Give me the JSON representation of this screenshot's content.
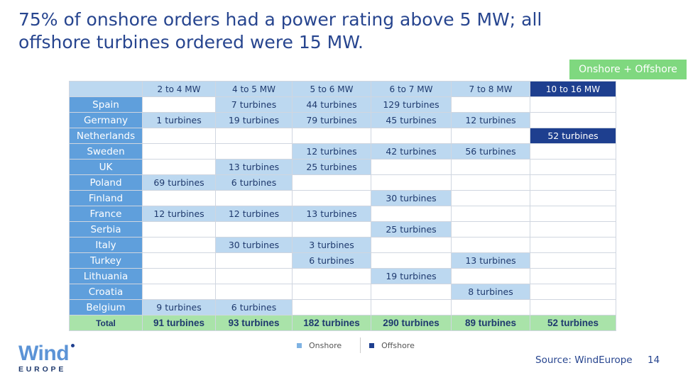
{
  "title": {
    "line1": "75% of onshore orders had a power rating above 5 MW; all",
    "line2": "offshore turbines ordered were 15 MW."
  },
  "tag": "Onshore + Offshore",
  "table": {
    "columns": [
      "2 to 4 MW",
      "4 to 5 MW",
      "5 to 6 MW",
      "6 to 7 MW",
      "7 to 8 MW",
      "10 to 16 MW"
    ],
    "rows": [
      {
        "country": "Spain",
        "cells": [
          "",
          "7 turbines",
          "44 turbines",
          "129 turbines",
          "",
          ""
        ]
      },
      {
        "country": "Germany",
        "cells": [
          "1 turbines",
          "19 turbines",
          "79 turbines",
          "45 turbines",
          "12 turbines",
          ""
        ]
      },
      {
        "country": "Netherlands",
        "cells": [
          "",
          "",
          "",
          "",
          "",
          "52 turbines"
        ]
      },
      {
        "country": "Sweden",
        "cells": [
          "",
          "",
          "12 turbines",
          "42 turbines",
          "56 turbines",
          ""
        ]
      },
      {
        "country": "UK",
        "cells": [
          "",
          "13 turbines",
          "25 turbines",
          "",
          "",
          ""
        ]
      },
      {
        "country": "Poland",
        "cells": [
          "69 turbines",
          "6 turbines",
          "",
          "",
          "",
          ""
        ]
      },
      {
        "country": "Finland",
        "cells": [
          "",
          "",
          "",
          "30 turbines",
          "",
          ""
        ]
      },
      {
        "country": "France",
        "cells": [
          "12 turbines",
          "12 turbines",
          "13 turbines",
          "",
          "",
          ""
        ]
      },
      {
        "country": "Serbia",
        "cells": [
          "",
          "",
          "",
          "25 turbines",
          "",
          ""
        ]
      },
      {
        "country": "Italy",
        "cells": [
          "",
          "30 turbines",
          "3 turbines",
          "",
          "",
          ""
        ]
      },
      {
        "country": "Turkey",
        "cells": [
          "",
          "",
          "6 turbines",
          "",
          "13 turbines",
          ""
        ]
      },
      {
        "country": "Lithuania",
        "cells": [
          "",
          "",
          "",
          "19 turbines",
          "",
          ""
        ]
      },
      {
        "country": "Croatia",
        "cells": [
          "",
          "",
          "",
          "",
          "8 turbines",
          ""
        ]
      },
      {
        "country": "Belgium",
        "cells": [
          "9 turbines",
          "6 turbines",
          "",
          "",
          "",
          ""
        ]
      }
    ],
    "total": {
      "label": "Total",
      "cells": [
        "91 turbines",
        "93 turbines",
        "182 turbines",
        "290 turbines",
        "89 turbines",
        "52 turbines"
      ]
    }
  },
  "legend": {
    "onshore": "Onshore",
    "offshore": "Offshore"
  },
  "colors": {
    "onshore": "#bcd8f0",
    "offshore": "#1e3f8f",
    "country": "#5f9fdc",
    "total": "#a9e3a9",
    "tag": "#7fd87f"
  },
  "logo": {
    "word": "Wind",
    "sub": "EUROPE"
  },
  "source": "Source: WindEurope",
  "page_number": "14"
}
